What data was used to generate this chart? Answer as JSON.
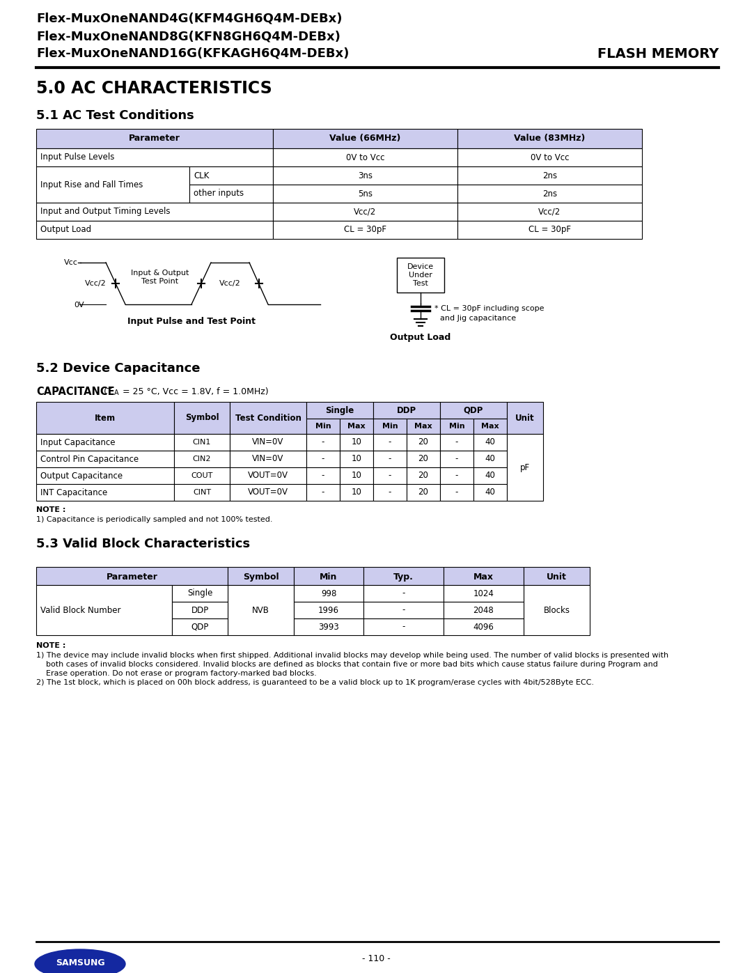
{
  "header_lines": [
    "Flex-MuxOneNAND4G(KFM4GH6Q4M-DEBx)",
    "Flex-MuxOneNAND8G(KFN8GH6Q4M-DEBx)",
    "Flex-MuxOneNAND16G(KFKAGH6Q4M-DEBx)"
  ],
  "header_right": "FLASH MEMORY",
  "section_title": "5.0 AC CHARACTERISTICS",
  "subsection1": "5.1 AC Test Conditions",
  "subsection2": "5.2 Device Capacitance",
  "subsection3": "5.3 Valid Block Characteristics",
  "ac_table_rows": [
    [
      "Input Pulse Levels",
      "",
      "0V to Vcc",
      "0V to Vcc"
    ],
    [
      "Input Rise and Fall Times",
      "CLK",
      "3ns",
      "2ns"
    ],
    [
      "",
      "other inputs",
      "5ns",
      "2ns"
    ],
    [
      "Input and Output Timing Levels",
      "",
      "Vcc/2",
      "Vcc/2"
    ],
    [
      "Output Load",
      "",
      "CL = 30pF",
      "CL = 30pF"
    ]
  ],
  "cap_table_rows": [
    [
      "Input Capacitance",
      "CIN1",
      "VIN=0V",
      "-",
      "10",
      "-",
      "20",
      "-",
      "40"
    ],
    [
      "Control Pin Capacitance",
      "CIN2",
      "VIN=0V",
      "-",
      "10",
      "-",
      "20",
      "-",
      "40"
    ],
    [
      "Output Capacitance",
      "COUT",
      "VOUT=0V",
      "-",
      "10",
      "-",
      "20",
      "-",
      "40"
    ],
    [
      "INT Capacitance",
      "CINT",
      "VOUT=0V",
      "-",
      "10",
      "-",
      "20",
      "-",
      "40"
    ]
  ],
  "cap_unit": "pF",
  "cap_note1": "NOTE :",
  "cap_note2": "1) Capacitance is periodically sampled and not 100% tested.",
  "vb_rows_data": [
    [
      "Single",
      "998",
      "-",
      "1024"
    ],
    [
      "DDP",
      "1996",
      "-",
      "2048"
    ],
    [
      "QDP",
      "3993",
      "-",
      "4096"
    ]
  ],
  "vb_unit": "Blocks",
  "vb_note1": "NOTE :",
  "vb_note2": "1) The device may include invalid blocks when first shipped. Additional invalid blocks may develop while being used. The number of valid blocks is presented with",
  "vb_note3": "    both cases of invalid blocks considered. Invalid blocks are defined as blocks that contain five or more bad bits which cause status failure during Program and",
  "vb_note4": "    Erase operation. Do not erase or program factory-marked bad blocks.",
  "vb_note5": "2) The 1st block, which is placed on 00h block address, is guaranteed to be a valid block up to 1K program/erase cycles with 4bit/528Byte ECC.",
  "page_number": "- 110 -",
  "header_color": "#ccccee",
  "table_border": "#000000",
  "bg_white": "#ffffff",
  "samsung_blue": "#1428A0"
}
